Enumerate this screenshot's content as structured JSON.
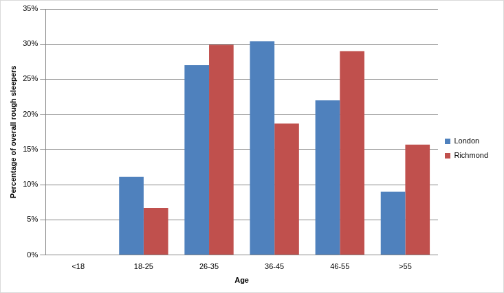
{
  "chart_data": {
    "type": "bar",
    "xlabel": "Age",
    "ylabel": "Percentage of overall rough sleepers",
    "categories": [
      "<18",
      "18-25",
      "26-35",
      "36-45",
      "46-55",
      ">55"
    ],
    "series": [
      {
        "name": "London",
        "color": "#4f81bd",
        "values": [
          0,
          11.1,
          27,
          30.4,
          22,
          9
        ]
      },
      {
        "name": "Richmond",
        "color": "#c0504d",
        "values": [
          0,
          6.7,
          29.9,
          18.7,
          29,
          15.7
        ]
      }
    ],
    "ylim": [
      0,
      35
    ],
    "yticks": [
      {
        "value": 0,
        "label": "0%"
      },
      {
        "value": 5,
        "label": "5%"
      },
      {
        "value": 10,
        "label": "10%"
      },
      {
        "value": 15,
        "label": "15%"
      },
      {
        "value": 20,
        "label": "20%"
      },
      {
        "value": 25,
        "label": "25%"
      },
      {
        "value": 30,
        "label": "30%"
      },
      {
        "value": 35,
        "label": "35%"
      }
    ],
    "grid": true,
    "legend": "right"
  }
}
